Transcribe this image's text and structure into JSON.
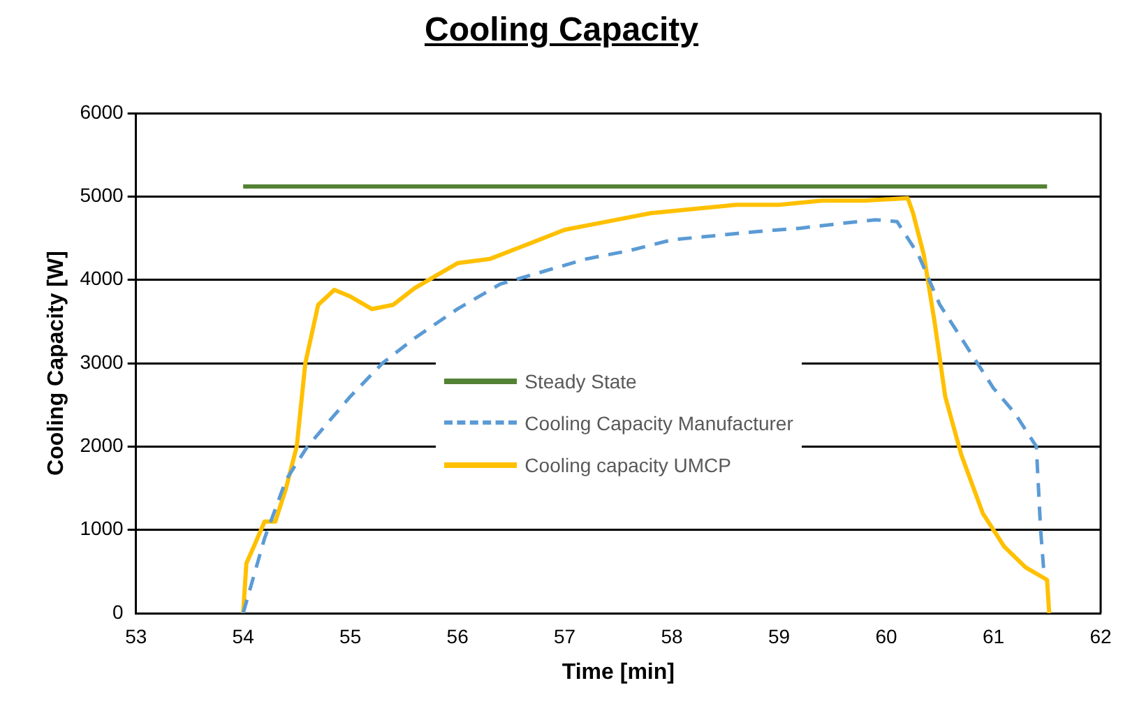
{
  "chart_data": {
    "type": "line",
    "title": "Cooling Capacity",
    "xlabel": "Time [min]",
    "ylabel": "Cooling Capacity [W]",
    "xlim": [
      53,
      62
    ],
    "xticks": [
      53,
      54,
      55,
      56,
      57,
      58,
      59,
      60,
      61,
      62
    ],
    "ylim": [
      0,
      6000
    ],
    "yticks": [
      0,
      1000,
      2000,
      3000,
      4000,
      5000,
      6000
    ],
    "grid": "y",
    "legend": "center",
    "marker": "none",
    "series": [
      {
        "name": "Steady State",
        "color": "#548235",
        "line_style": "solid",
        "x": [
          54,
          61.5
        ],
        "values": [
          5120,
          5120
        ]
      },
      {
        "name": "Cooling Capacity Manufacturer",
        "color": "#5b9bd5",
        "line_style": "dashed",
        "x": [
          54.0,
          54.2,
          54.4,
          54.6,
          54.8,
          55.0,
          55.3,
          55.6,
          56.0,
          56.4,
          56.8,
          57.2,
          57.6,
          58.0,
          58.4,
          58.8,
          59.2,
          59.6,
          59.9,
          60.1,
          60.3,
          60.5,
          60.8,
          61.0,
          61.2,
          61.4,
          61.44,
          61.47
        ],
        "values": [
          0,
          900,
          1600,
          2000,
          2300,
          2600,
          3000,
          3300,
          3650,
          3950,
          4100,
          4250,
          4350,
          4480,
          4530,
          4580,
          4620,
          4680,
          4720,
          4700,
          4300,
          3700,
          3100,
          2700,
          2400,
          2000,
          1000,
          500
        ]
      },
      {
        "name": "Cooling capacity UMCP",
        "color": "#ffc000",
        "line_style": "solid",
        "x": [
          54.0,
          54.03,
          54.1,
          54.2,
          54.3,
          54.4,
          54.5,
          54.58,
          54.7,
          54.85,
          55.0,
          55.2,
          55.4,
          55.6,
          55.8,
          56.0,
          56.3,
          56.6,
          57.0,
          57.4,
          57.8,
          58.2,
          58.6,
          59.0,
          59.4,
          59.8,
          60.2,
          60.25,
          60.35,
          60.45,
          60.55,
          60.7,
          60.9,
          61.1,
          61.3,
          61.5,
          61.52
        ],
        "values": [
          0,
          600,
          800,
          1100,
          1100,
          1500,
          2000,
          3000,
          3700,
          3880,
          3800,
          3650,
          3700,
          3900,
          4050,
          4200,
          4250,
          4400,
          4600,
          4700,
          4800,
          4850,
          4900,
          4900,
          4950,
          4950,
          4980,
          4800,
          4300,
          3500,
          2600,
          1900,
          1200,
          800,
          550,
          400,
          0
        ]
      }
    ]
  }
}
